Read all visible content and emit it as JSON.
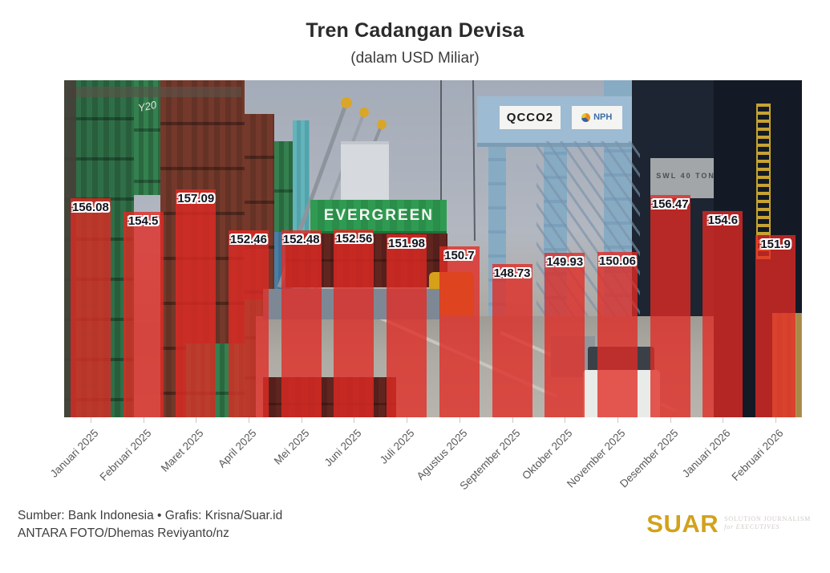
{
  "header": {
    "title": "Tren Cadangan Devisa",
    "subtitle": "(dalam USD Miliar)"
  },
  "chart_data": {
    "type": "bar",
    "title": "Tren Cadangan Devisa",
    "subtitle": "(dalam USD Miliar)",
    "unit": "USD Miliar",
    "categories": [
      "Januari 2025",
      "Februari 2025",
      "Maret 2025",
      "April 2025",
      "Mei 2025",
      "Juni 2025",
      "Juli 2025",
      "Agustus 2025",
      "September 2025",
      "Oktober 2025",
      "November 2025",
      "Desember 2025",
      "Januari 2026",
      "Februari 2026"
    ],
    "values": [
      156.08,
      154.5,
      157.09,
      152.46,
      152.48,
      152.56,
      151.98,
      150.7,
      148.73,
      149.93,
      150.06,
      156.47,
      154.6,
      151.9
    ],
    "ylim": [
      131.5,
      169.3
    ],
    "grid": false,
    "legend": "none",
    "bar_color": "#e22a24",
    "bar_opacity": 0.78,
    "value_label_color": "#14141f",
    "background": "container-port-photo"
  },
  "photo": {
    "evergreen_label": "EVERGREEN",
    "qcco2_label": "QCCO2",
    "nph_label": "NPH",
    "swl_label": "SWL 40 TON",
    "graffiti": "Y20"
  },
  "footer": {
    "source_line": "Sumber: Bank Indonesia • Grafis: Krisna/Suar.id",
    "photo_credit": "ANTARA FOTO/Dhemas Reviyanto/nz"
  },
  "logo": {
    "text": "SUAR",
    "color": "#d2a21c",
    "tagline_line1": "SOLUTION JOURNALISM",
    "tagline_line2": "for EXECUTIVES"
  }
}
